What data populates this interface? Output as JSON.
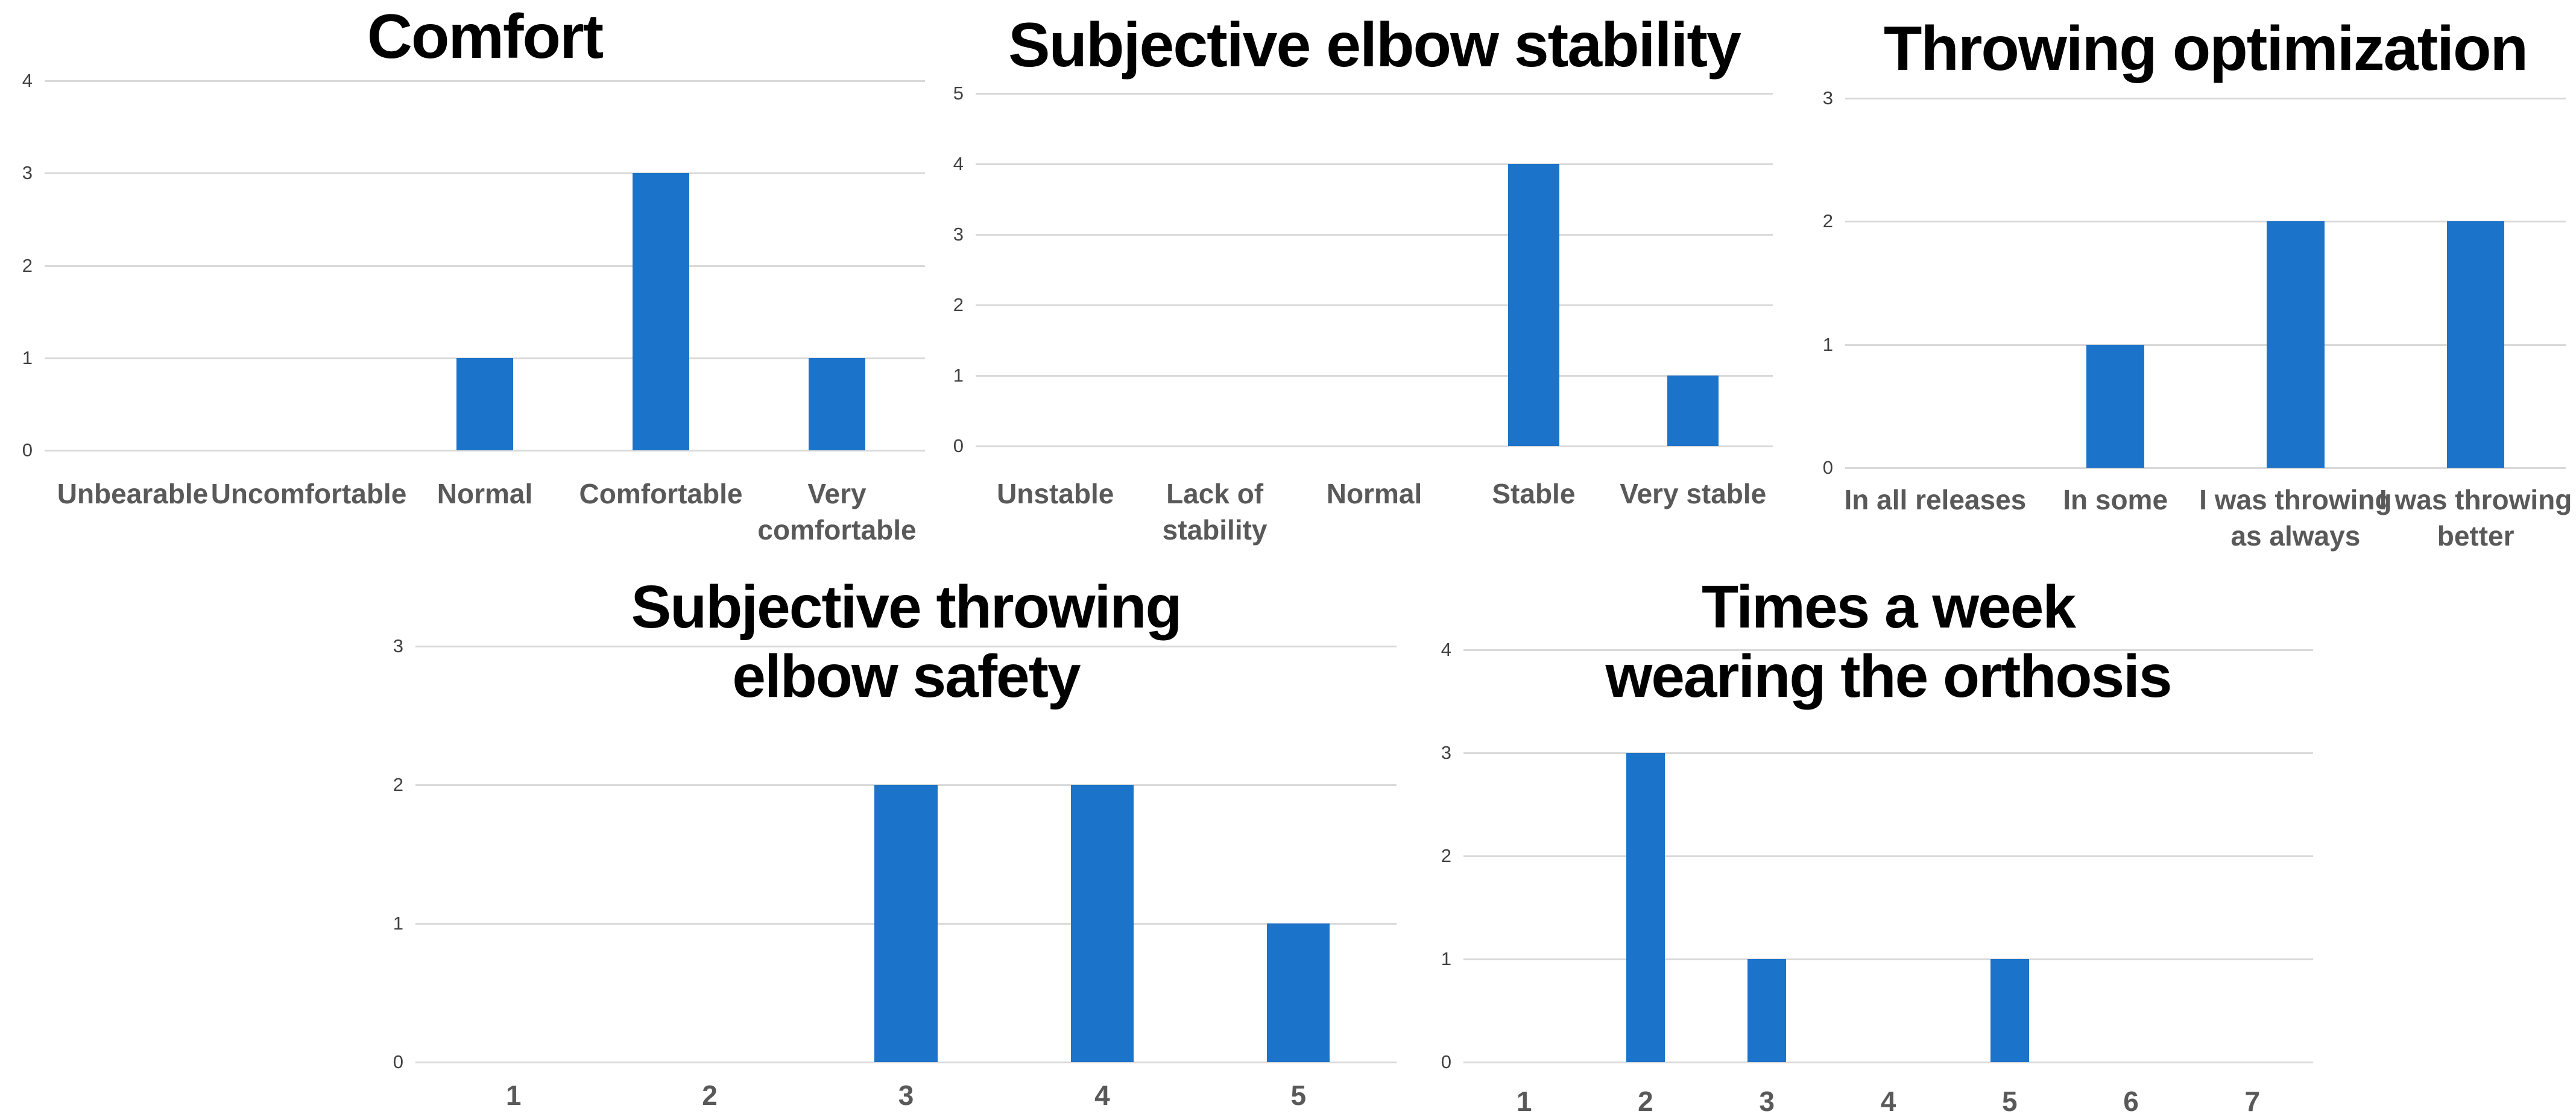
{
  "figure": {
    "description_titles": [
      "Comfort",
      "Subjective elbow stability",
      "Throwing optimization",
      "Subjective throwing elbow safety",
      "Times a week wearing the orthosis"
    ]
  },
  "colors": {
    "bar": "#1B74C9",
    "gridline": "#D9D9D9",
    "axis_tick_label": "#404040",
    "category_label": "#595959",
    "title": "#000000",
    "background": "#FFFFFF"
  },
  "chart_data": [
    {
      "type": "bar",
      "title": "Comfort",
      "categories": [
        "Unbearable",
        "Uncomfortable",
        "Normal",
        "Comfortable",
        "Very\ncomfortable"
      ],
      "values": [
        0,
        0,
        1,
        3,
        1
      ],
      "xlabel": "",
      "ylabel": "",
      "ylim": [
        0,
        4
      ],
      "yticks": [
        0,
        1,
        2,
        3,
        4
      ],
      "grid": true,
      "legend": "none"
    },
    {
      "type": "bar",
      "title": "Subjective elbow stability",
      "categories": [
        "Unstable",
        "Lack of\nstability",
        "Normal",
        "Stable",
        "Very stable"
      ],
      "values": [
        0,
        0,
        0,
        4,
        1
      ],
      "xlabel": "",
      "ylabel": "",
      "ylim": [
        0,
        5
      ],
      "yticks": [
        0,
        1,
        2,
        3,
        4,
        5
      ],
      "grid": true,
      "legend": "none"
    },
    {
      "type": "bar",
      "title": "Throwing optimization",
      "categories": [
        "In all releases",
        "In some",
        "I was throwing\nas always",
        "I was throwing\nbetter"
      ],
      "values": [
        0,
        1,
        2,
        2
      ],
      "xlabel": "",
      "ylabel": "",
      "ylim": [
        0,
        3
      ],
      "yticks": [
        0,
        1,
        2,
        3
      ],
      "grid": true,
      "legend": "none"
    },
    {
      "type": "bar",
      "title": "Subjective throwing\nelbow safety",
      "categories": [
        "1",
        "2",
        "3",
        "4",
        "5"
      ],
      "values": [
        0,
        0,
        2,
        2,
        1
      ],
      "xlabel": "",
      "ylabel": "",
      "ylim": [
        0,
        3
      ],
      "yticks": [
        0,
        1,
        2,
        3
      ],
      "grid": true,
      "legend": "none"
    },
    {
      "type": "bar",
      "title": "Times a week\nwearing the orthosis",
      "categories": [
        "1",
        "2",
        "3",
        "4",
        "5",
        "6",
        "7"
      ],
      "values": [
        0,
        3,
        1,
        0,
        1,
        0,
        0
      ],
      "xlabel": "",
      "ylabel": "",
      "ylim": [
        0,
        4
      ],
      "yticks": [
        0,
        1,
        2,
        3,
        4
      ],
      "grid": true,
      "legend": "none"
    }
  ]
}
